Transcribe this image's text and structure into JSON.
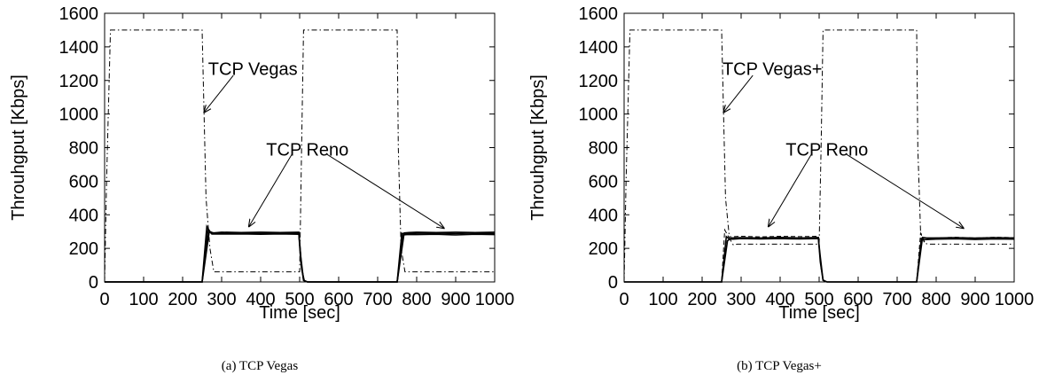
{
  "chart_data": [
    {
      "type": "line",
      "caption": "(a) TCP Vegas",
      "xlabel": "Time [sec]",
      "ylabel": "Throuhgput [Kbps]",
      "xlim": [
        0,
        1000
      ],
      "ylim": [
        0,
        1600
      ],
      "xticks": [
        0,
        100,
        200,
        300,
        400,
        500,
        600,
        700,
        800,
        900,
        1000
      ],
      "yticks": [
        0,
        200,
        400,
        600,
        800,
        1000,
        1200,
        1400,
        1600
      ],
      "grid": false,
      "series": [
        {
          "style": "dashdot",
          "x": [
            0,
            5,
            15,
            18,
            250,
            253,
            260,
            270,
            280,
            290,
            500,
            505,
            510,
            515,
            750,
            753,
            760,
            770,
            780,
            1000
          ],
          "y": [
            0,
            600,
            1500,
            1500,
            1500,
            1200,
            500,
            200,
            60,
            60,
            60,
            800,
            1500,
            1500,
            1500,
            800,
            200,
            60,
            60,
            60
          ]
        },
        {
          "style": "solid",
          "x": [
            0,
            250,
            262,
            270,
            280,
            300,
            350,
            400,
            450,
            498,
            503,
            510,
            520,
            750,
            762,
            770,
            800,
            850,
            900,
            950,
            1000
          ],
          "y": [
            0,
            0,
            330,
            300,
            290,
            290,
            292,
            288,
            292,
            290,
            150,
            10,
            0,
            0,
            290,
            285,
            290,
            292,
            288,
            292,
            288
          ]
        },
        {
          "style": "solid",
          "x": [
            0,
            250,
            265,
            275,
            300,
            350,
            400,
            450,
            498,
            503,
            510,
            520,
            750,
            765,
            775,
            800,
            850,
            900,
            950,
            1000
          ],
          "y": [
            0,
            0,
            310,
            285,
            285,
            286,
            284,
            286,
            284,
            120,
            10,
            0,
            0,
            280,
            282,
            282,
            284,
            280,
            284,
            282
          ]
        },
        {
          "style": "solid",
          "x": [
            0,
            250,
            268,
            280,
            300,
            350,
            400,
            450,
            498,
            505,
            512,
            520,
            750,
            768,
            780,
            800,
            850,
            900,
            950,
            1000
          ],
          "y": [
            0,
            0,
            295,
            292,
            296,
            294,
            296,
            294,
            296,
            80,
            5,
            0,
            0,
            292,
            294,
            296,
            294,
            296,
            294,
            296
          ]
        }
      ],
      "annotations": [
        {
          "text": "TCP Vegas",
          "x": 380,
          "y": 1270
        },
        {
          "text": "TCP Reno",
          "x": 520,
          "y": 790
        }
      ]
    },
    {
      "type": "line",
      "caption": "(b) TCP Vegas+",
      "xlabel": "Time [sec]",
      "ylabel": "Throuhgput [Kbps]",
      "xlim": [
        0,
        1000
      ],
      "ylim": [
        0,
        1600
      ],
      "xticks": [
        0,
        100,
        200,
        300,
        400,
        500,
        600,
        700,
        800,
        900,
        1000
      ],
      "yticks": [
        0,
        200,
        400,
        600,
        800,
        1000,
        1200,
        1400,
        1600
      ],
      "grid": false,
      "series": [
        {
          "style": "dashdot",
          "x": [
            0,
            5,
            15,
            18,
            250,
            253,
            260,
            270,
            280,
            290,
            500,
            505,
            510,
            515,
            750,
            753,
            760,
            770,
            780,
            1000
          ],
          "y": [
            0,
            600,
            1500,
            1500,
            1500,
            1200,
            500,
            260,
            220,
            225,
            225,
            800,
            1500,
            1500,
            1500,
            800,
            300,
            230,
            225,
            225
          ]
        },
        {
          "style": "solid",
          "x": [
            0,
            250,
            262,
            270,
            280,
            300,
            350,
            400,
            450,
            498,
            503,
            510,
            520,
            750,
            762,
            770,
            800,
            850,
            900,
            950,
            1000
          ],
          "y": [
            0,
            0,
            270,
            255,
            255,
            258,
            256,
            258,
            256,
            258,
            150,
            10,
            0,
            0,
            258,
            252,
            255,
            257,
            253,
            256,
            255
          ]
        },
        {
          "style": "solid",
          "x": [
            0,
            250,
            265,
            275,
            300,
            350,
            400,
            450,
            498,
            503,
            510,
            520,
            750,
            765,
            775,
            800,
            850,
            900,
            950,
            1000
          ],
          "y": [
            0,
            0,
            245,
            262,
            264,
            262,
            265,
            262,
            265,
            120,
            10,
            0,
            0,
            265,
            262,
            262,
            264,
            261,
            264,
            262
          ]
        },
        {
          "style": "dashed",
          "x": [
            0,
            250,
            258,
            268,
            280,
            300,
            350,
            400,
            450,
            498,
            505,
            512,
            520,
            750,
            760,
            770,
            780,
            800,
            850,
            900,
            950,
            1000
          ],
          "y": [
            0,
            0,
            310,
            268,
            270,
            272,
            268,
            272,
            270,
            272,
            80,
            5,
            0,
            0,
            290,
            240,
            260,
            262,
            266,
            262,
            266,
            264
          ]
        }
      ],
      "annotations": [
        {
          "text": "TCP Vegas+",
          "x": 380,
          "y": 1270
        },
        {
          "text": "TCP Reno",
          "x": 520,
          "y": 790
        }
      ]
    }
  ]
}
